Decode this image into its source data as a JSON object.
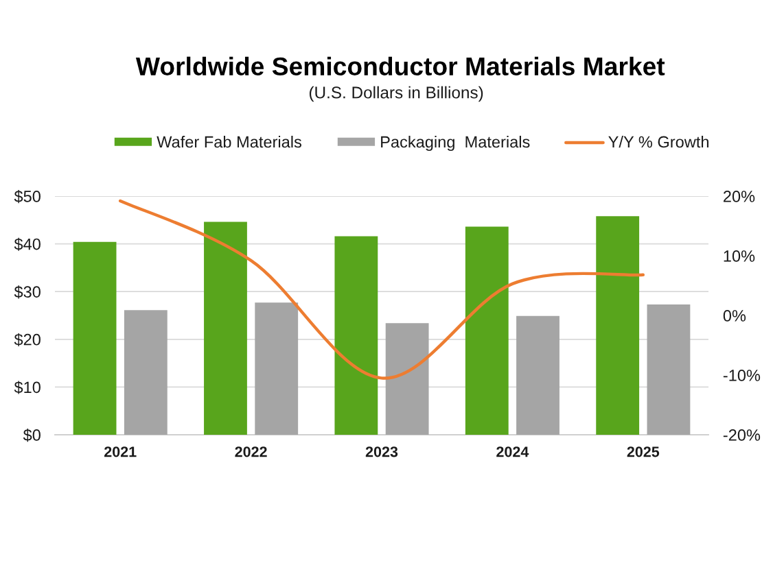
{
  "chart_data": {
    "type": "bar",
    "title": "Worldwide Semiconductor Materials Market",
    "subtitle": "(U.S. Dollars in Billions)",
    "categories": [
      "2021",
      "2022",
      "2023",
      "2024",
      "2025"
    ],
    "series": [
      {
        "name": "Wafer Fab Materials",
        "color": "#58a51c",
        "values": [
          40.4,
          44.6,
          41.6,
          43.6,
          45.8
        ]
      },
      {
        "name": "Packaging  Materials",
        "color": "#a5a5a5",
        "values": [
          26.1,
          27.7,
          23.4,
          24.9,
          27.3
        ]
      },
      {
        "name": "Y/Y % Growth",
        "type": "line",
        "axis": "y2",
        "color": "#ed7d31",
        "values": [
          19.2,
          9.2,
          -10.5,
          5.3,
          6.8
        ]
      }
    ],
    "ylim": [
      0,
      50
    ],
    "yticks": [
      {
        "value": 0,
        "label": "$0"
      },
      {
        "value": 10,
        "label": "$10"
      },
      {
        "value": 20,
        "label": "$20"
      },
      {
        "value": 30,
        "label": "$30"
      },
      {
        "value": 40,
        "label": "$40"
      },
      {
        "value": 50,
        "label": "$50"
      }
    ],
    "y2lim": [
      -20,
      20
    ],
    "y2ticks": [
      {
        "value": -20,
        "label": "-20%"
      },
      {
        "value": -10,
        "label": "-10%"
      },
      {
        "value": 0,
        "label": "0%"
      },
      {
        "value": 10,
        "label": "10%"
      },
      {
        "value": 20,
        "label": "20%"
      }
    ],
    "grid": "y",
    "legend": "top"
  }
}
